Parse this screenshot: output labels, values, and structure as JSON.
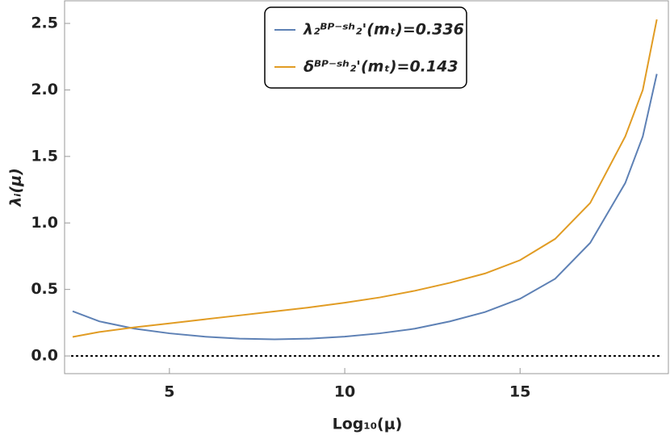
{
  "chart_data": {
    "type": "line",
    "x_label": "Log₁₀(μ)",
    "y_label": "λᵢ(μ)",
    "x": [
      2.24,
      3,
      4,
      5,
      6,
      7,
      8,
      9,
      10,
      11,
      12,
      13,
      14,
      15,
      16,
      17,
      18,
      18.5,
      18.9
    ],
    "series": [
      {
        "name": "λ₂ᴮᴾ⁻ˢʰ₂'(mₜ)=0.336",
        "color": "#5e81b5",
        "values": [
          0.336,
          0.26,
          0.205,
          0.17,
          0.145,
          0.13,
          0.125,
          0.13,
          0.145,
          0.17,
          0.205,
          0.26,
          0.33,
          0.43,
          0.58,
          0.85,
          1.3,
          1.65,
          2.12
        ]
      },
      {
        "name": "δᴮᴾ⁻ˢʰ₂'(mₜ)=0.143",
        "color": "#e19c24",
        "values": [
          0.143,
          0.18,
          0.215,
          0.245,
          0.275,
          0.305,
          0.335,
          0.365,
          0.4,
          0.44,
          0.49,
          0.55,
          0.62,
          0.72,
          0.88,
          1.15,
          1.65,
          2.0,
          2.53
        ]
      }
    ],
    "xlim": [
      2.01,
      19.23
    ],
    "ylim": [
      -0.133,
      2.67
    ],
    "xticks": [
      5,
      10,
      15
    ],
    "yticks": [
      {
        "value": 0,
        "label": "0.0"
      },
      {
        "value": 0.5,
        "label": "0.5"
      },
      {
        "value": 1,
        "label": "1.0"
      },
      {
        "value": 1.5,
        "label": "1.5"
      },
      {
        "value": 2,
        "label": "2.0"
      },
      {
        "value": 2.5,
        "label": "2.5"
      }
    ],
    "hlines": [
      0
    ],
    "legend": "top"
  }
}
